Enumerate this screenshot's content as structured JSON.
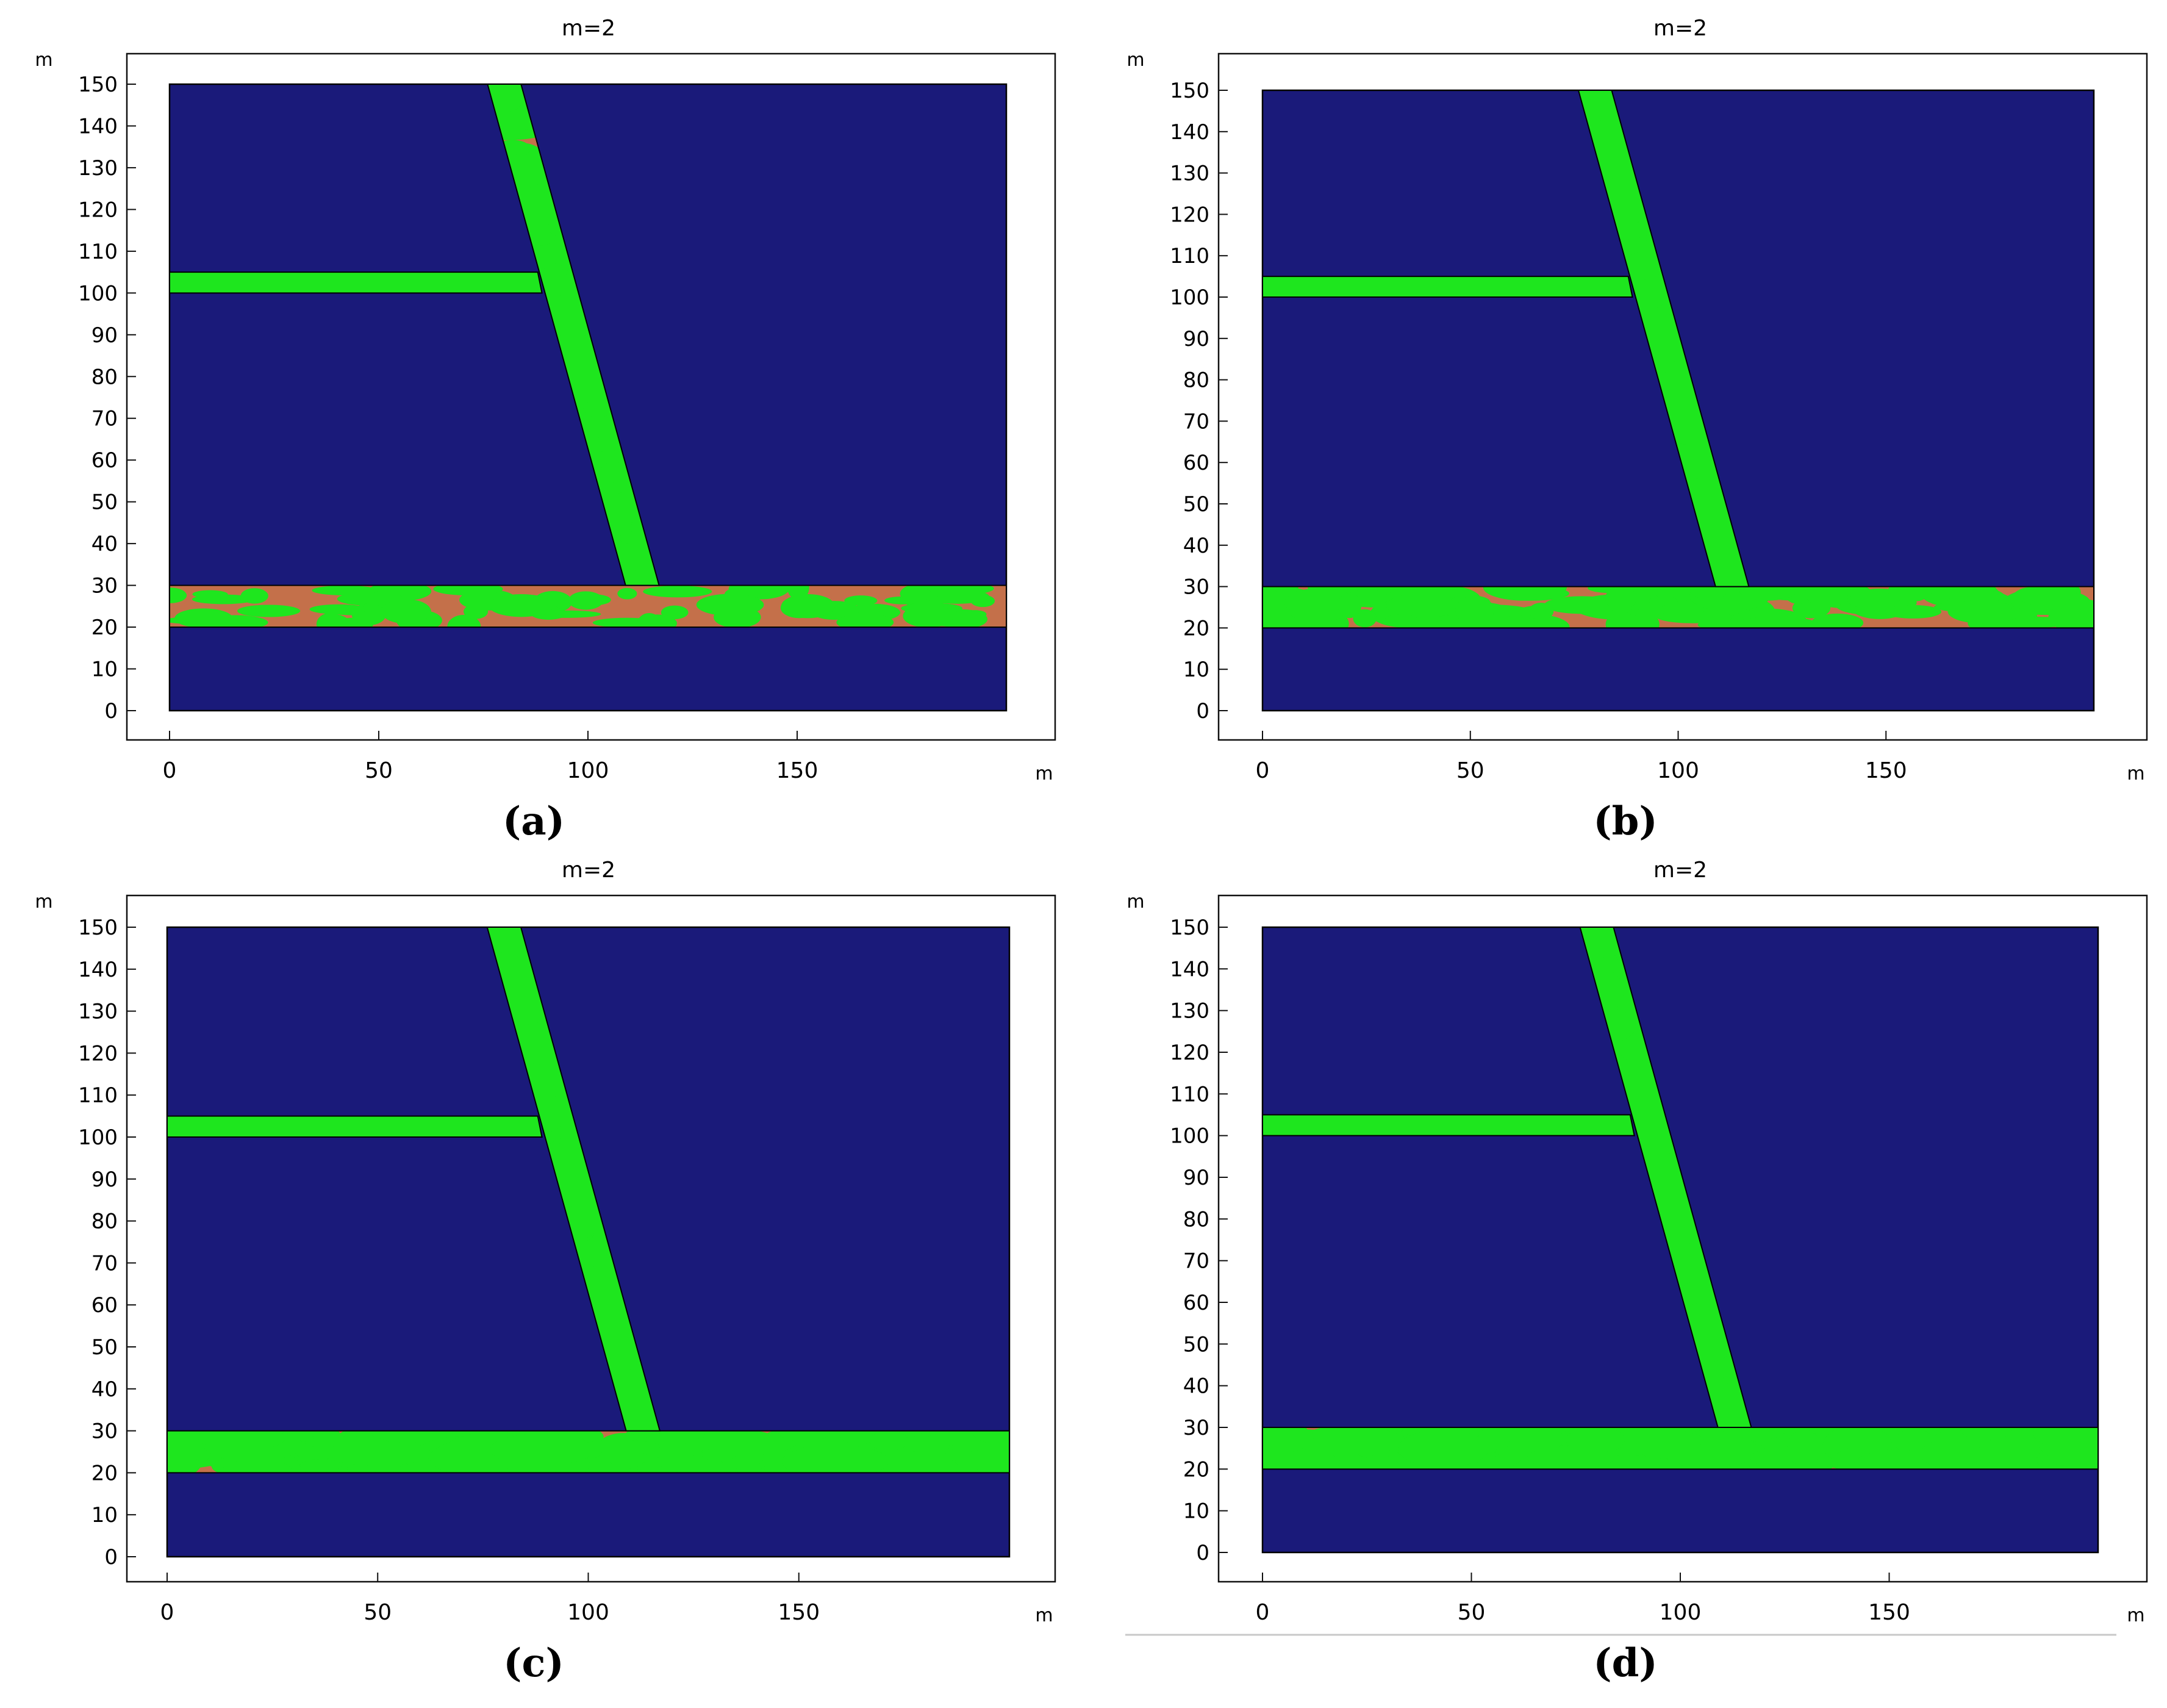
{
  "colors": {
    "background": "#1a1a7a",
    "layer": "#c4704a",
    "flow": "#1ee61e",
    "frame": "#000000",
    "axis_text": "#000000"
  },
  "chart_data": [
    {
      "panel": "a",
      "type": "heatmap",
      "title": "m=2",
      "caption": "(a)",
      "xunit": "m",
      "yunit": "m",
      "xlim": [
        0,
        200
      ],
      "ylim": [
        0,
        150
      ],
      "xticks": [
        0,
        50,
        100,
        150
      ],
      "yticks": [
        0,
        10,
        20,
        30,
        40,
        50,
        60,
        70,
        80,
        90,
        100,
        110,
        120,
        130,
        140,
        150
      ],
      "domain": [
        [
          0,
          0
        ],
        [
          200,
          0
        ],
        [
          200,
          150
        ],
        [
          0,
          150
        ]
      ],
      "layers": [
        {
          "role": "bottom-layer",
          "points": [
            [
              0,
              20
            ],
            [
              200,
              20
            ],
            [
              200,
              30
            ],
            [
              0,
              30
            ]
          ]
        },
        {
          "role": "fault",
          "points": [
            [
              76,
              150
            ],
            [
              84,
              150
            ],
            [
              117,
              30
            ],
            [
              109,
              30
            ]
          ]
        },
        {
          "role": "upper-layer",
          "points": [
            [
              0,
              100
            ],
            [
              89,
              100
            ],
            [
              88,
              105
            ],
            [
              0,
              105
            ]
          ]
        }
      ],
      "fill": {
        "upper-layer": 0.98,
        "fault": 0.45,
        "bottom-layer": 0.1
      }
    },
    {
      "panel": "b",
      "type": "heatmap",
      "title": "m=2",
      "caption": "(b)",
      "xunit": "m",
      "yunit": "m",
      "xlim": [
        0,
        200
      ],
      "ylim": [
        0,
        150
      ],
      "xticks": [
        0,
        50,
        100,
        150
      ],
      "yticks": [
        0,
        10,
        20,
        30,
        40,
        50,
        60,
        70,
        80,
        90,
        100,
        110,
        120,
        130,
        140,
        150
      ],
      "domain": [
        [
          0,
          0
        ],
        [
          200,
          0
        ],
        [
          200,
          150
        ],
        [
          0,
          150
        ]
      ],
      "layers": [
        {
          "role": "bottom-layer",
          "points": [
            [
              0,
              20
            ],
            [
              200,
              20
            ],
            [
              200,
              30
            ],
            [
              0,
              30
            ]
          ]
        },
        {
          "role": "fault",
          "points": [
            [
              76,
              150
            ],
            [
              84,
              150
            ],
            [
              117,
              30
            ],
            [
              109,
              30
            ]
          ]
        },
        {
          "role": "upper-layer",
          "points": [
            [
              0,
              100
            ],
            [
              89,
              100
            ],
            [
              88,
              105
            ],
            [
              0,
              105
            ]
          ]
        }
      ],
      "fill": {
        "upper-layer": 0.98,
        "fault": 0.6,
        "bottom-layer": 0.3
      }
    },
    {
      "panel": "c",
      "type": "heatmap",
      "title": "m=2",
      "caption": "(c)",
      "xunit": "m",
      "yunit": "m",
      "xlim": [
        0,
        200
      ],
      "ylim": [
        0,
        150
      ],
      "xticks": [
        0,
        50,
        100,
        150
      ],
      "yticks": [
        0,
        10,
        20,
        30,
        40,
        50,
        60,
        70,
        80,
        90,
        100,
        110,
        120,
        130,
        140,
        150
      ],
      "domain": [
        [
          0,
          0
        ],
        [
          200,
          0
        ],
        [
          200,
          150
        ],
        [
          0,
          150
        ]
      ],
      "layers": [
        {
          "role": "bottom-layer",
          "points": [
            [
              0,
              20
            ],
            [
              200,
              20
            ],
            [
              200,
              30
            ],
            [
              0,
              30
            ]
          ]
        },
        {
          "role": "fault",
          "points": [
            [
              76,
              150
            ],
            [
              84,
              150
            ],
            [
              117,
              30
            ],
            [
              109,
              30
            ]
          ]
        },
        {
          "role": "upper-layer",
          "points": [
            [
              0,
              100
            ],
            [
              89,
              100
            ],
            [
              88,
              105
            ],
            [
              0,
              105
            ]
          ]
        }
      ],
      "fill": {
        "upper-layer": 0.98,
        "fault": 0.8,
        "bottom-layer": 0.5
      }
    },
    {
      "panel": "d",
      "type": "heatmap",
      "title": "m=2",
      "caption": "(d)",
      "xunit": "m",
      "yunit": "m",
      "xlim": [
        0,
        200
      ],
      "ylim": [
        0,
        150
      ],
      "xticks": [
        0,
        50,
        100,
        150
      ],
      "yticks": [
        0,
        10,
        20,
        30,
        40,
        50,
        60,
        70,
        80,
        90,
        100,
        110,
        120,
        130,
        140,
        150
      ],
      "domain": [
        [
          0,
          0
        ],
        [
          200,
          0
        ],
        [
          200,
          150
        ],
        [
          0,
          150
        ]
      ],
      "layers": [
        {
          "role": "bottom-layer",
          "points": [
            [
              0,
              20
            ],
            [
              200,
              20
            ],
            [
              200,
              30
            ],
            [
              0,
              30
            ]
          ]
        },
        {
          "role": "fault",
          "points": [
            [
              76,
              150
            ],
            [
              84,
              150
            ],
            [
              117,
              30
            ],
            [
              109,
              30
            ]
          ]
        },
        {
          "role": "upper-layer",
          "points": [
            [
              0,
              100
            ],
            [
              89,
              100
            ],
            [
              88,
              105
            ],
            [
              0,
              105
            ]
          ]
        }
      ],
      "fill": {
        "upper-layer": 0.98,
        "fault": 0.85,
        "bottom-layer": 0.55
      }
    }
  ]
}
